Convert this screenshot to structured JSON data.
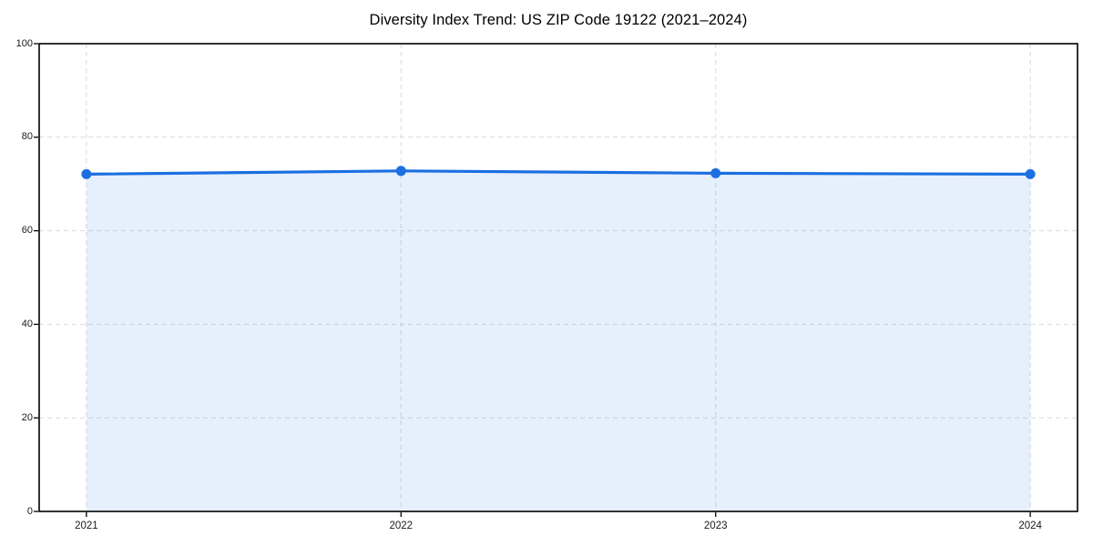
{
  "chart_data": {
    "type": "area",
    "title": "Diversity Index Trend: US ZIP Code 19122 (2021–2024)",
    "categories": [
      "2021",
      "2022",
      "2023",
      "2024"
    ],
    "series": [
      {
        "name": "Diversity Index",
        "values": [
          72.1,
          72.8,
          72.3,
          72.1
        ]
      }
    ],
    "xlabel": "",
    "ylabel": "",
    "ylim": [
      0,
      100
    ],
    "yticks": [
      0,
      20,
      40,
      60,
      80,
      100
    ],
    "grid": true,
    "grid_style": "dashed",
    "legend_position": "none",
    "colors": {
      "line": "#1b6fe0",
      "marker": "#1b6fe0",
      "fill_rgb": "27,111,224",
      "fill_alpha": 0.11,
      "grid": "#d9d9d9",
      "spine": "#000000",
      "tick_text": "#1a1a1a",
      "title_text": "#000000",
      "background": "#ffffff"
    }
  }
}
